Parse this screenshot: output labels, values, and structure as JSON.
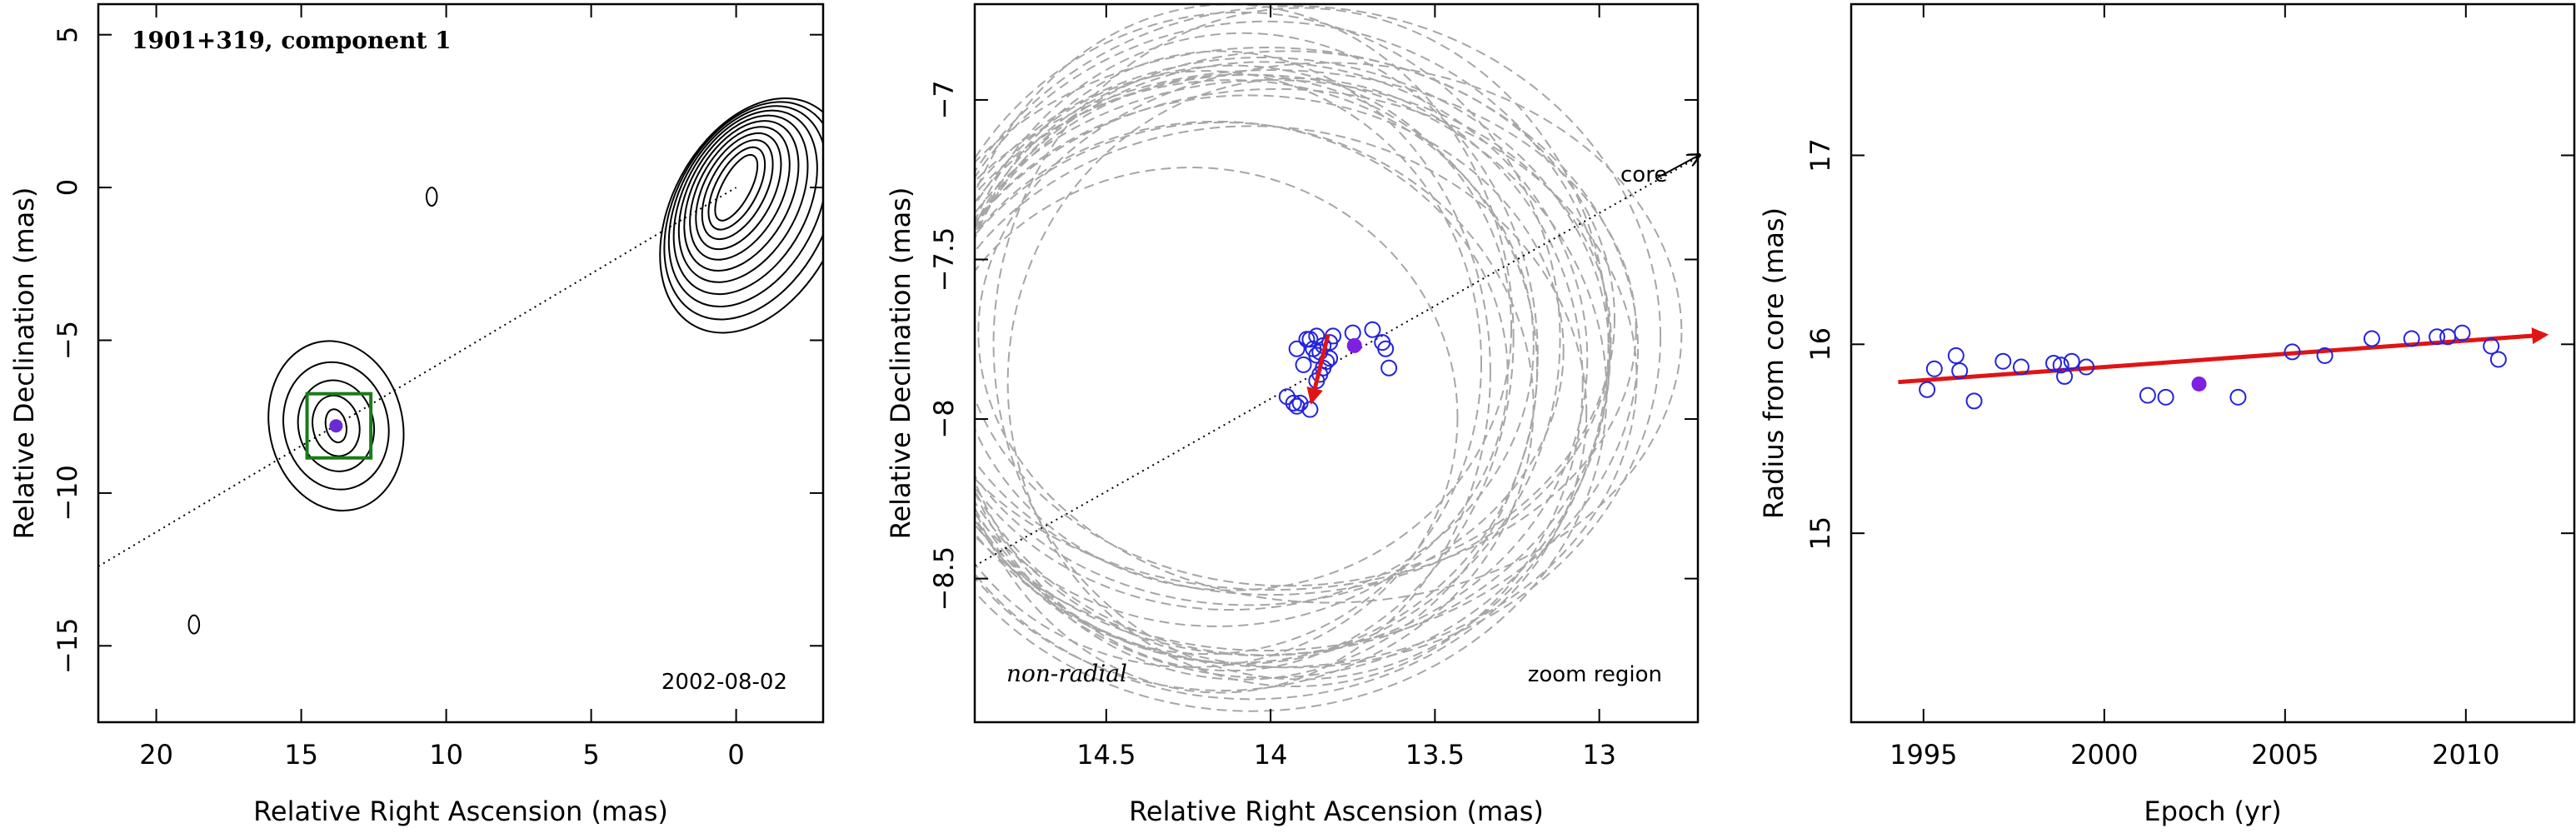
{
  "chart_data": [
    {
      "type": "contour",
      "title": "1901+319, component 1",
      "annotation": "2002-08-02",
      "xlabel": "Relative Right Ascension (mas)",
      "ylabel": "Relative Declination (mas)",
      "xlim": [
        22,
        -3
      ],
      "ylim": [
        -17.5,
        6
      ],
      "xticks": [
        20,
        15,
        10,
        5,
        0
      ],
      "yticks": [
        5,
        0,
        -5,
        -10,
        -15
      ],
      "core_position": [
        0,
        0
      ],
      "component_position": [
        13.8,
        -7.8
      ],
      "islands": [
        [
          10.5,
          -0.3
        ],
        [
          18.7,
          -14.3
        ]
      ],
      "zoom_box": {
        "x": [
          12.6,
          14.8
        ],
        "y": [
          -8.85,
          -6.75
        ]
      },
      "radial_line": [
        [
          22,
          -12.4
        ],
        [
          0,
          0
        ]
      ],
      "colors": {
        "contour": "#000000",
        "box": "#1a7a1a",
        "component": "#6b2ad8"
      }
    },
    {
      "type": "scatter",
      "annotations": [
        "non-radial",
        "zoom region",
        "core"
      ],
      "xlabel": "Relative Right Ascension (mas)",
      "ylabel": "Relative Declination (mas)",
      "xlim": [
        14.9,
        12.7
      ],
      "ylim": [
        -8.95,
        -6.7
      ],
      "xticks": [
        14.5,
        14,
        13.5,
        13
      ],
      "yticks": [
        -7,
        -7.5,
        -8,
        -8.5
      ],
      "x": [
        13.95,
        13.93,
        13.92,
        13.91,
        13.88,
        13.86,
        13.85,
        13.84,
        13.83,
        13.82,
        13.92,
        13.89,
        13.87,
        13.86,
        13.85,
        13.84,
        13.82,
        13.81,
        13.9,
        13.88,
        13.86,
        13.75,
        13.69,
        13.66,
        13.65,
        13.64
      ],
      "y": [
        -7.93,
        -7.95,
        -7.96,
        -7.95,
        -7.97,
        -7.88,
        -7.86,
        -7.84,
        -7.82,
        -7.81,
        -7.78,
        -7.75,
        -7.78,
        -7.8,
        -7.79,
        -7.77,
        -7.76,
        -7.74,
        -7.83,
        -7.75,
        -7.74,
        -7.73,
        -7.72,
        -7.76,
        -7.78,
        -7.84
      ],
      "mean_position": [
        13.745,
        -7.77
      ],
      "arrow": {
        "from": [
          13.825,
          -7.735
        ],
        "to": [
          13.875,
          -7.945
        ]
      },
      "radial_line": [
        [
          14.9,
          -8.46
        ],
        [
          12.7,
          -7.18
        ]
      ],
      "colors": {
        "points": "#2323e0",
        "mean": "#7d20e0",
        "arrow": "#e01414",
        "ellipses": "#a6a6a6"
      }
    },
    {
      "type": "scatter",
      "xlabel": "Epoch (yr)",
      "ylabel": "Radius from core (mas)",
      "xlim": [
        1993,
        2013
      ],
      "ylim": [
        14,
        17.8
      ],
      "xticks": [
        1995,
        2000,
        2005,
        2010
      ],
      "yticks": [
        15,
        16,
        17
      ],
      "x": [
        1995.1,
        1995.3,
        1995.9,
        1996.0,
        1996.4,
        1997.2,
        1997.7,
        1998.6,
        1998.8,
        1998.9,
        1999.1,
        1999.5,
        2001.2,
        2001.7,
        2003.7,
        2005.2,
        2006.1,
        2007.4,
        2008.5,
        2009.2,
        2009.5,
        2009.9,
        2010.7,
        2010.9
      ],
      "y": [
        15.76,
        15.87,
        15.94,
        15.86,
        15.7,
        15.91,
        15.88,
        15.9,
        15.89,
        15.83,
        15.91,
        15.88,
        15.73,
        15.72,
        15.72,
        15.96,
        15.94,
        16.03,
        16.03,
        16.04,
        16.04,
        16.06,
        15.99,
        15.92
      ],
      "mean_point": [
        2002.62,
        15.79
      ],
      "fit_line": {
        "x": [
          1994.3,
          2012.2
        ],
        "y": [
          15.8,
          16.05
        ]
      },
      "colors": {
        "points": "#2323e0",
        "mean": "#7d20e0",
        "fit": "#e01414"
      }
    }
  ]
}
